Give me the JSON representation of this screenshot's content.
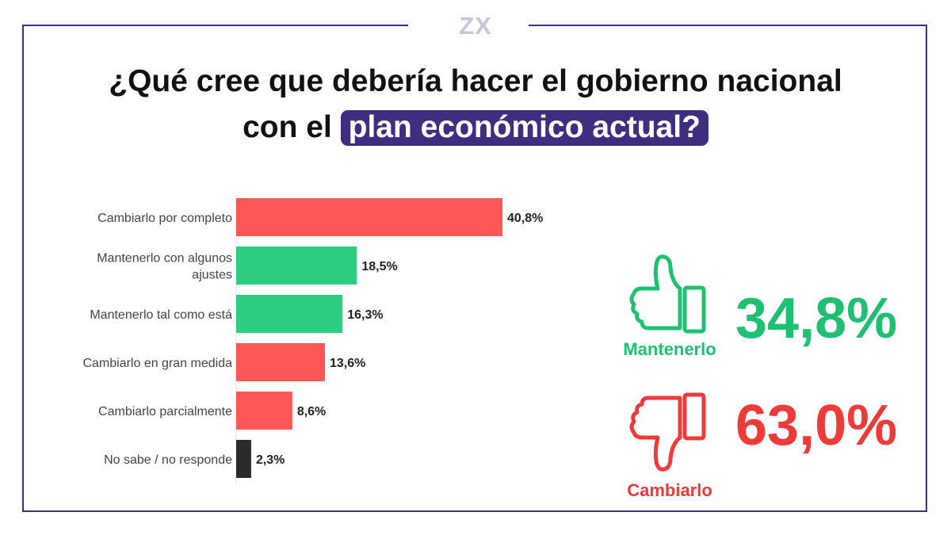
{
  "brand": {
    "logo_text": "ZX",
    "logo_color": "#c9c5d6",
    "frame_color": "#3f2d7f"
  },
  "title": {
    "line1": "¿Qué cree que debería hacer el gobierno nacional",
    "line2_plain": "con el ",
    "line2_highlight": "plan económico actual?"
  },
  "chart_data": {
    "type": "bar",
    "orientation": "horizontal",
    "title": "",
    "xlabel": "",
    "ylabel": "",
    "xlim": [
      0,
      40.8
    ],
    "categories": [
      "Cambiarlo por completo",
      "Mantenerlo con algunos ajustes",
      "Mantenerlo tal como está",
      "Cambiarlo en gran medida",
      "Cambiarlo parcialmente",
      "No sabe / no responde"
    ],
    "category_lines": [
      [
        "Cambiarlo por completo"
      ],
      [
        "Mantenerlo con algunos",
        "ajustes"
      ],
      [
        "Mantenerlo tal como está"
      ],
      [
        "Cambiarlo en gran medida"
      ],
      [
        "Cambiarlo parcialmente"
      ],
      [
        "No sabe / no responde"
      ]
    ],
    "values": [
      40.8,
      18.5,
      16.3,
      13.6,
      8.6,
      2.3
    ],
    "value_labels": [
      "40,8%",
      "18,5%",
      "16,3%",
      "13,6%",
      "8,6%",
      "2,3%"
    ],
    "colors": [
      "#fd5757",
      "#2ecc80",
      "#2ecc80",
      "#fd5757",
      "#fd5757",
      "#2b2b2b"
    ],
    "grid": false,
    "legend": "none"
  },
  "summary": {
    "keep": {
      "label": "Mantenerlo",
      "value": "34,8%",
      "color": "#20c073",
      "icon": "thumbs-up-icon"
    },
    "change": {
      "label": "Cambiarlo",
      "value": "63,0%",
      "color": "#ef3a3a",
      "icon": "thumbs-down-icon"
    }
  }
}
